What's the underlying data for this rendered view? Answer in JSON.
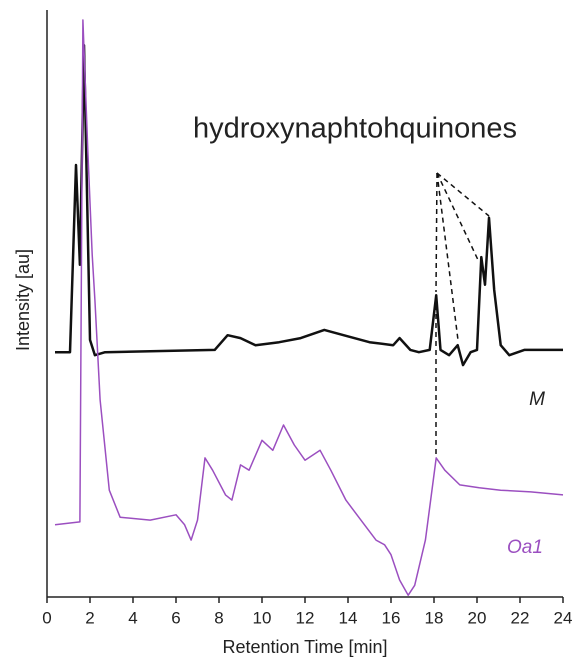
{
  "chart_data": {
    "type": "line",
    "xlabel": "Retention Time [min]",
    "ylabel": "Intensity [au]",
    "annotations": [
      "hydroxynaphtohquinones"
    ],
    "xlim": [
      0,
      24
    ],
    "xticks": [
      0,
      2,
      4,
      6,
      8,
      10,
      12,
      14,
      16,
      18,
      20,
      22,
      24
    ],
    "ylim": [
      0,
      100
    ],
    "series": [
      {
        "name": "M",
        "color": "#111111",
        "x": [
          0.37,
          1.07,
          1.35,
          1.53,
          1.72,
          2.0,
          2.23,
          2.7,
          7.8,
          8.4,
          9.0,
          9.7,
          10.8,
          11.8,
          12.9,
          13.9,
          15.0,
          16.1,
          16.4,
          16.9,
          17.3,
          17.8,
          18.1,
          18.3,
          18.7,
          19.1,
          19.35,
          19.7,
          20.0,
          20.2,
          20.37,
          20.56,
          20.8,
          21.1,
          21.5,
          22.2,
          24.0
        ],
        "values": [
          41.7,
          41.7,
          73.6,
          56.6,
          94.0,
          43.8,
          41.2,
          41.7,
          42.1,
          44.6,
          44.1,
          42.9,
          43.4,
          44.1,
          45.5,
          44.5,
          43.4,
          42.9,
          44.1,
          42.1,
          41.7,
          42.1,
          51.4,
          42.1,
          41.2,
          42.9,
          39.5,
          41.7,
          42.1,
          57.9,
          53.2,
          64.6,
          52.3,
          42.9,
          41.2,
          42.1,
          42.1
        ]
      },
      {
        "name": "Oa1",
        "color": "#9b4fc0",
        "x": [
          0.37,
          1.53,
          1.67,
          1.9,
          2.1,
          2.23,
          2.47,
          2.9,
          3.4,
          4.8,
          6.0,
          6.4,
          6.7,
          7.0,
          7.35,
          7.7,
          8.3,
          8.6,
          9.0,
          9.4,
          10.0,
          10.5,
          11.0,
          11.5,
          12.0,
          12.7,
          13.2,
          13.9,
          14.6,
          15.3,
          15.7,
          16.0,
          16.4,
          16.8,
          17.1,
          17.6,
          18.1,
          18.5,
          19.2,
          20.1,
          21.1,
          22.5,
          24.0
        ],
        "values": [
          12.3,
          12.8,
          98.3,
          76.1,
          58.3,
          50.6,
          33.6,
          18.2,
          13.6,
          13.1,
          14.0,
          12.3,
          9.7,
          13.1,
          23.7,
          21.6,
          17.4,
          16.5,
          22.5,
          21.6,
          26.7,
          25.0,
          29.3,
          25.9,
          23.3,
          25.0,
          21.6,
          16.5,
          13.1,
          9.7,
          8.9,
          7.2,
          2.9,
          0.3,
          2.0,
          9.7,
          23.7,
          21.6,
          19.1,
          18.6,
          18.2,
          17.9,
          17.4
        ]
      }
    ]
  }
}
